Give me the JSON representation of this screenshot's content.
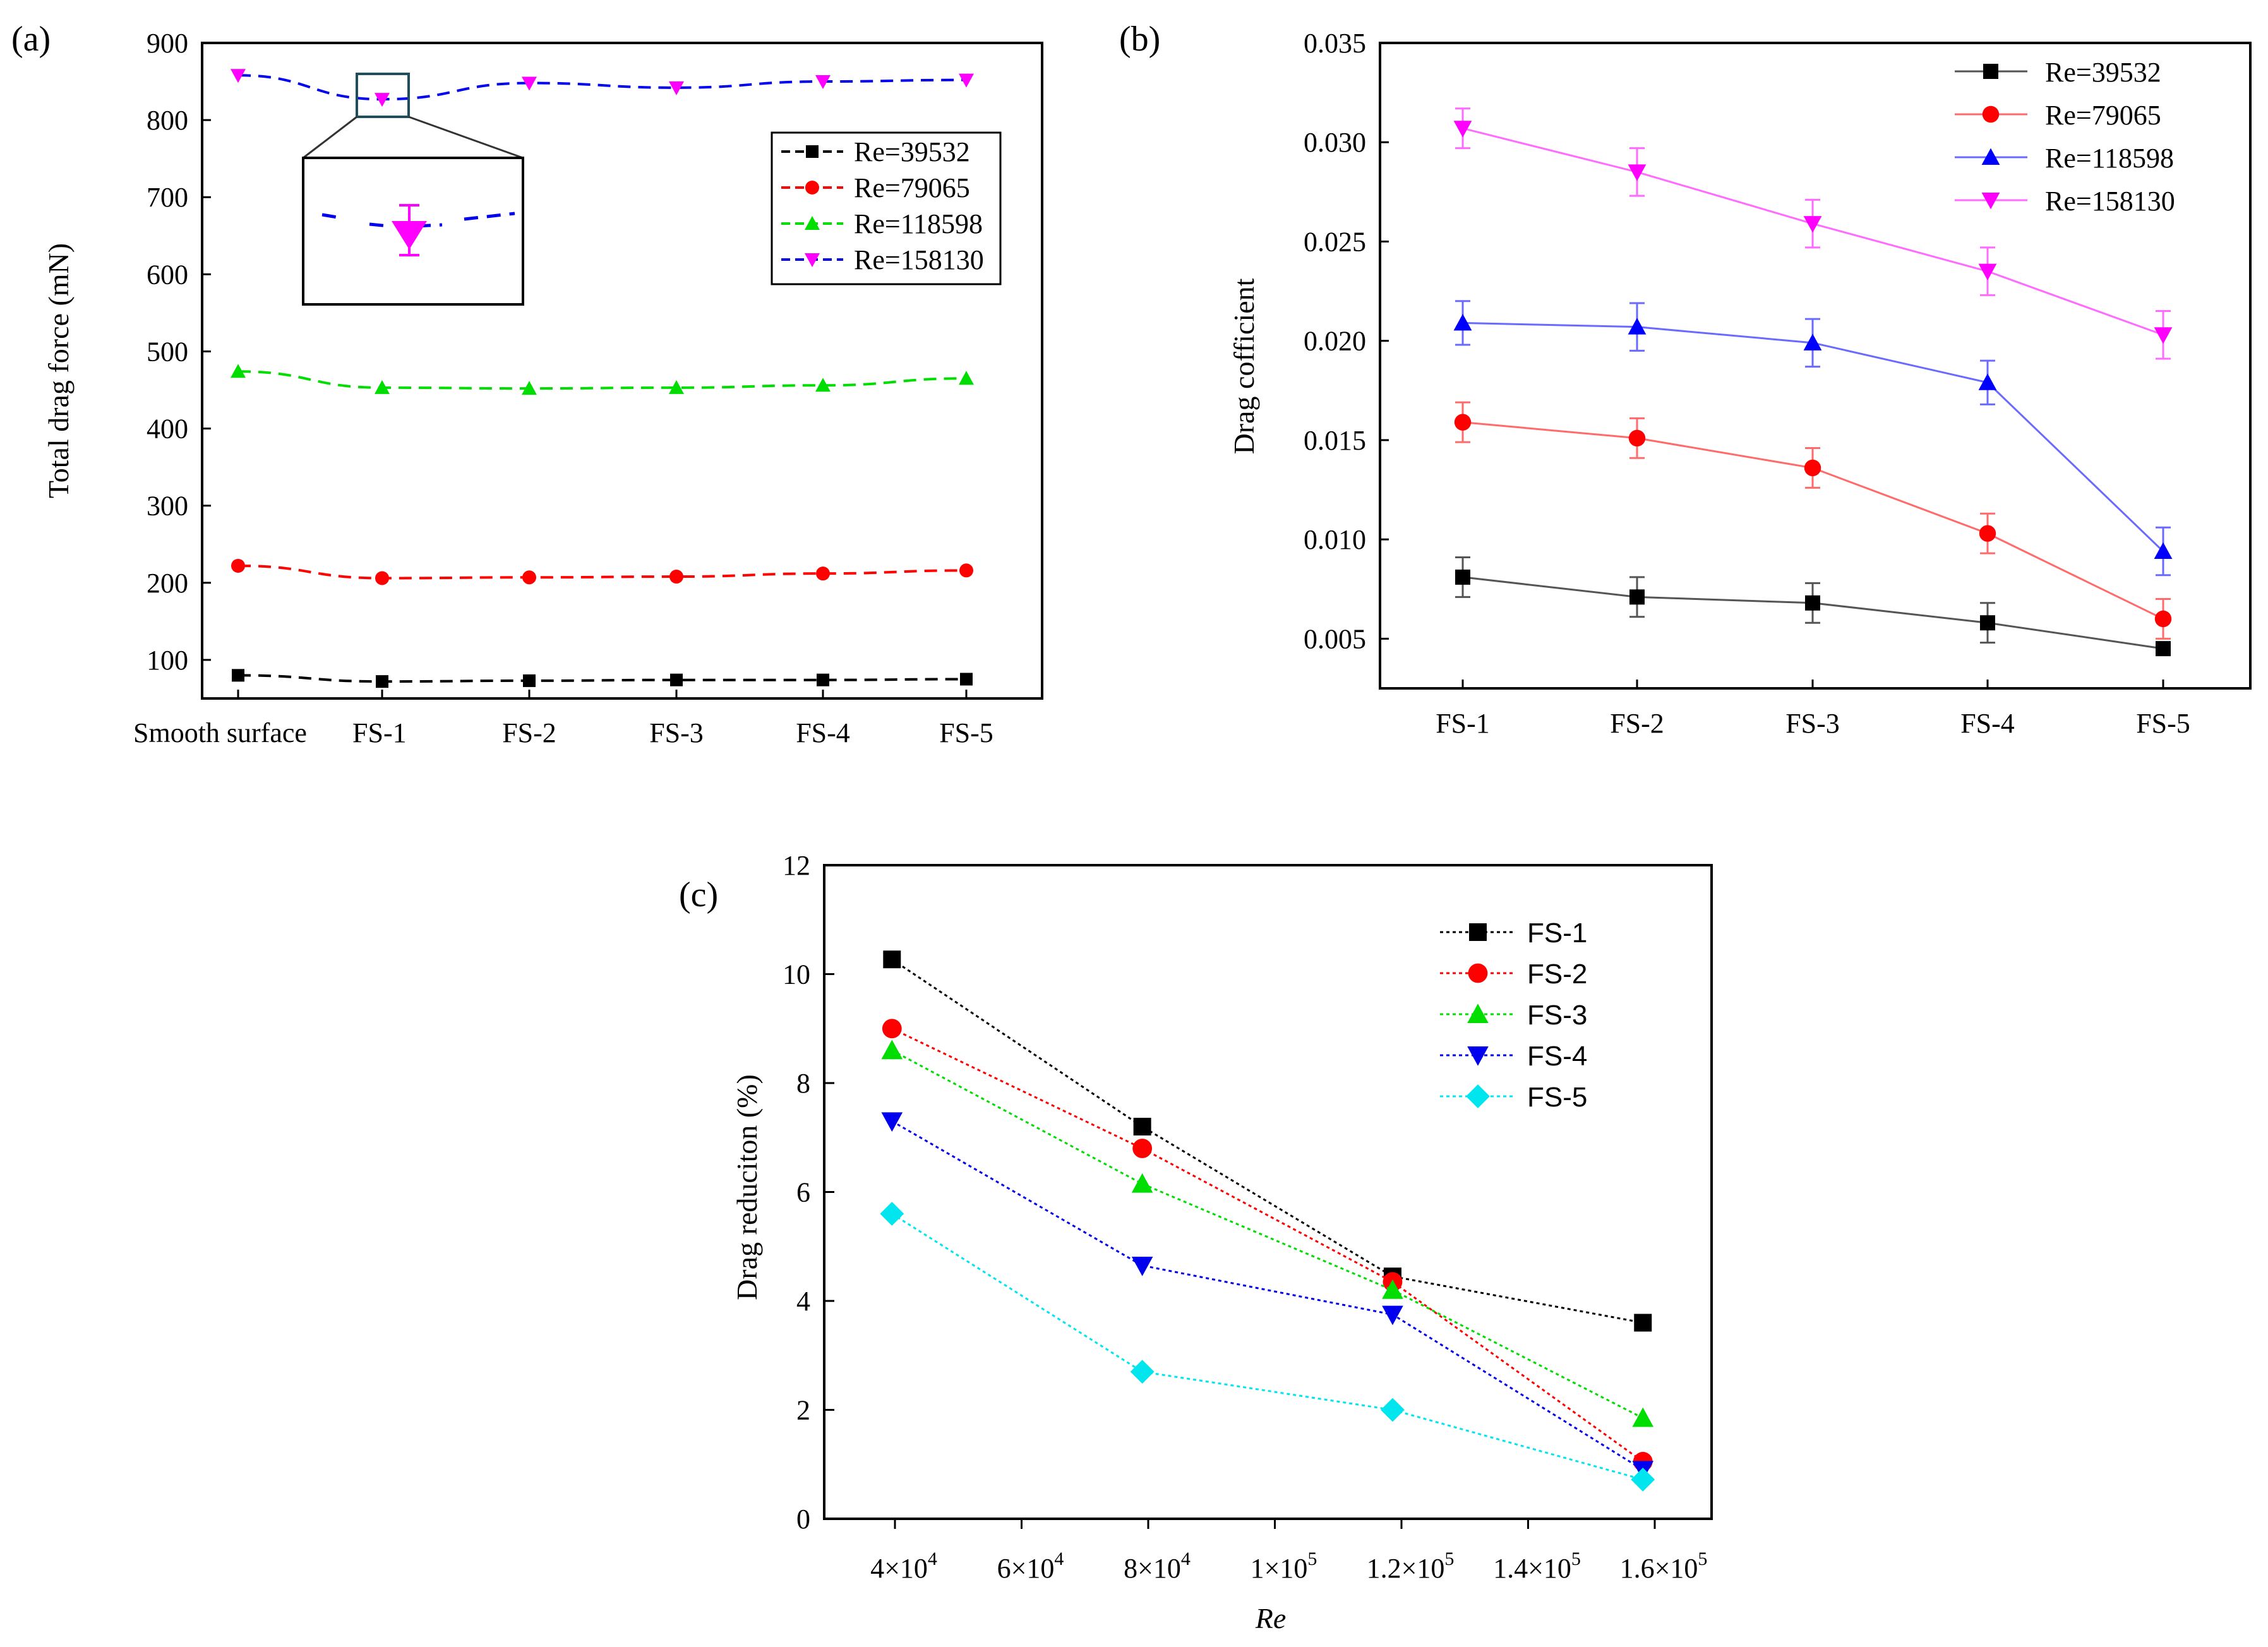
{
  "panels": {
    "a": {
      "label": "(a)",
      "chart_data": {
        "type": "line",
        "title": "",
        "xlabel": "",
        "ylabel": "Total drag force (mN)",
        "categories": [
          "Smooth surface",
          "FS-1",
          "FS-2",
          "FS-3",
          "FS-4",
          "FS-5"
        ],
        "ylim": [
          50,
          900
        ],
        "yticks": [
          100,
          200,
          300,
          400,
          500,
          600,
          700,
          800,
          900
        ],
        "legend_position": "middle-right",
        "inset": "zoom of FS-1 point, Re=158130",
        "series": [
          {
            "name": "Re=39532",
            "color": "#000000",
            "marker": "square",
            "values": [
              80,
              72,
              73,
              74,
              74,
              75
            ]
          },
          {
            "name": "Re=79065",
            "color": "#ff0000",
            "marker": "circle",
            "values": [
              222,
              206,
              207,
              208,
              212,
              216
            ]
          },
          {
            "name": "Re=118598",
            "color": "#00dd00",
            "marker": "triangle-up",
            "values": [
              474,
              453,
              452,
              453,
              456,
              465
            ]
          },
          {
            "name": "Re=158130",
            "color": "#ff00ff",
            "marker": "triangle-down",
            "values": [
              858,
              827,
              848,
              842,
              850,
              852
            ]
          }
        ]
      }
    },
    "b": {
      "label": "(b)",
      "chart_data": {
        "type": "line",
        "title": "",
        "xlabel": "",
        "ylabel": "Drag cofficient",
        "categories": [
          "FS-1",
          "FS-2",
          "FS-3",
          "FS-4",
          "FS-5"
        ],
        "ylim": [
          0.0025,
          0.035
        ],
        "yticks": [
          "0.005",
          "0.010",
          "0.015",
          "0.020",
          "0.025",
          "0.030",
          "0.035"
        ],
        "legend_position": "top-right",
        "error_bars": true,
        "series": [
          {
            "name": "Re=39532",
            "color": "#000000",
            "marker": "square",
            "values": [
              0.0081,
              0.0071,
              0.0068,
              0.0058,
              0.0045
            ],
            "errors": [
              0.001,
              0.001,
              0.001,
              0.001,
              0.0002
            ]
          },
          {
            "name": "Re=79065",
            "color": "#ff0000",
            "marker": "circle",
            "values": [
              0.0159,
              0.0151,
              0.0136,
              0.0103,
              0.006
            ],
            "errors": [
              0.001,
              0.001,
              0.001,
              0.001,
              0.001
            ]
          },
          {
            "name": "Re=118598",
            "color": "#0000ff",
            "marker": "triangle-up",
            "values": [
              0.0209,
              0.0207,
              0.0199,
              0.0179,
              0.0094
            ],
            "errors": [
              0.0011,
              0.0012,
              0.0012,
              0.0011,
              0.0012
            ]
          },
          {
            "name": "Re=158130",
            "color": "#ff00ff",
            "marker": "triangle-down",
            "values": [
              0.0307,
              0.0285,
              0.0259,
              0.0235,
              0.0203
            ],
            "errors": [
              0.001,
              0.0012,
              0.0012,
              0.0012,
              0.0012
            ]
          }
        ]
      }
    },
    "c": {
      "label": "(c)",
      "chart_data": {
        "type": "line",
        "title": "",
        "xlabel": "Re",
        "ylabel": "Drag reduciton (%)",
        "x": [
          39532,
          79065,
          118598,
          158130
        ],
        "xlim": [
          30000,
          165000
        ],
        "xticks": [
          {
            "value": 40000,
            "mantissa": "4×10",
            "exp": "4"
          },
          {
            "value": 60000,
            "mantissa": "6×10",
            "exp": "4"
          },
          {
            "value": 80000,
            "mantissa": "8×10",
            "exp": "4"
          },
          {
            "value": 100000,
            "mantissa": "1×10",
            "exp": "5"
          },
          {
            "value": 120000,
            "mantissa": "1.2×10",
            "exp": "5"
          },
          {
            "value": 140000,
            "mantissa": "1.4×10",
            "exp": "5"
          },
          {
            "value": 160000,
            "mantissa": "1.6×10",
            "exp": "5"
          }
        ],
        "ylim": [
          0,
          12
        ],
        "yticks": [
          0,
          2,
          4,
          6,
          8,
          10,
          12
        ],
        "legend_position": "top-right",
        "series": [
          {
            "name": "FS-1",
            "color": "#000000",
            "marker": "square",
            "values": [
              10.27,
              7.2,
              4.45,
              3.6
            ]
          },
          {
            "name": "FS-2",
            "color": "#ff0000",
            "marker": "circle",
            "values": [
              9.0,
              6.8,
              4.35,
              1.05
            ]
          },
          {
            "name": "FS-3",
            "color": "#00dd00",
            "marker": "triangle-up",
            "values": [
              8.6,
              6.15,
              4.2,
              1.85
            ]
          },
          {
            "name": "FS-4",
            "color": "#0000ee",
            "marker": "triangle-down",
            "values": [
              7.3,
              4.65,
              3.75,
              0.9
            ]
          },
          {
            "name": "FS-5",
            "color": "#00e5ee",
            "marker": "diamond",
            "values": [
              5.6,
              2.7,
              2.0,
              0.72
            ]
          }
        ]
      }
    }
  }
}
